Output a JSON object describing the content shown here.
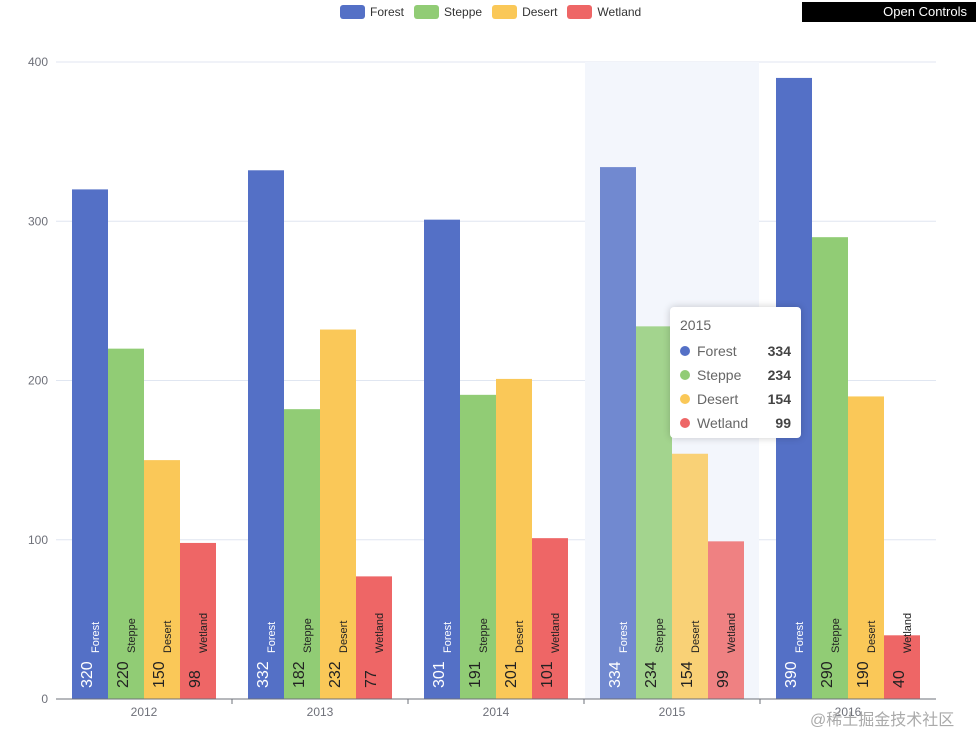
{
  "legend": {
    "items": [
      {
        "label": "Forest",
        "color": "#5470c6"
      },
      {
        "label": "Steppe",
        "color": "#91cc75"
      },
      {
        "label": "Desert",
        "color": "#fac858"
      },
      {
        "label": "Wetland",
        "color": "#ee6666"
      }
    ]
  },
  "controls": {
    "label": "Open Controls"
  },
  "tooltip": {
    "title": "2015",
    "rows": [
      {
        "name": "Forest",
        "value": "334",
        "color": "#5470c6"
      },
      {
        "name": "Steppe",
        "value": "234",
        "color": "#91cc75"
      },
      {
        "name": "Desert",
        "value": "154",
        "color": "#fac858"
      },
      {
        "name": "Wetland",
        "value": "99",
        "color": "#ee6666"
      }
    ]
  },
  "watermark": "@稀土掘金技术社区",
  "chart_data": {
    "type": "bar",
    "categories": [
      "2012",
      "2013",
      "2014",
      "2015",
      "2016"
    ],
    "series": [
      {
        "name": "Forest",
        "color": "#5470c6",
        "values": [
          320,
          332,
          301,
          334,
          390
        ]
      },
      {
        "name": "Steppe",
        "color": "#91cc75",
        "values": [
          220,
          182,
          191,
          234,
          290
        ]
      },
      {
        "name": "Desert",
        "color": "#fac858",
        "values": [
          150,
          232,
          201,
          154,
          190
        ]
      },
      {
        "name": "Wetland",
        "color": "#ee6666",
        "values": [
          98,
          77,
          101,
          99,
          40
        ]
      }
    ],
    "ylim": [
      0,
      400
    ],
    "yticks": [
      0,
      100,
      200,
      300,
      400
    ],
    "grid": true,
    "legend_position": "top-center",
    "highlighted_category": "2015",
    "data_labels": "value and series name, rotated vertical inside bar bottom"
  }
}
